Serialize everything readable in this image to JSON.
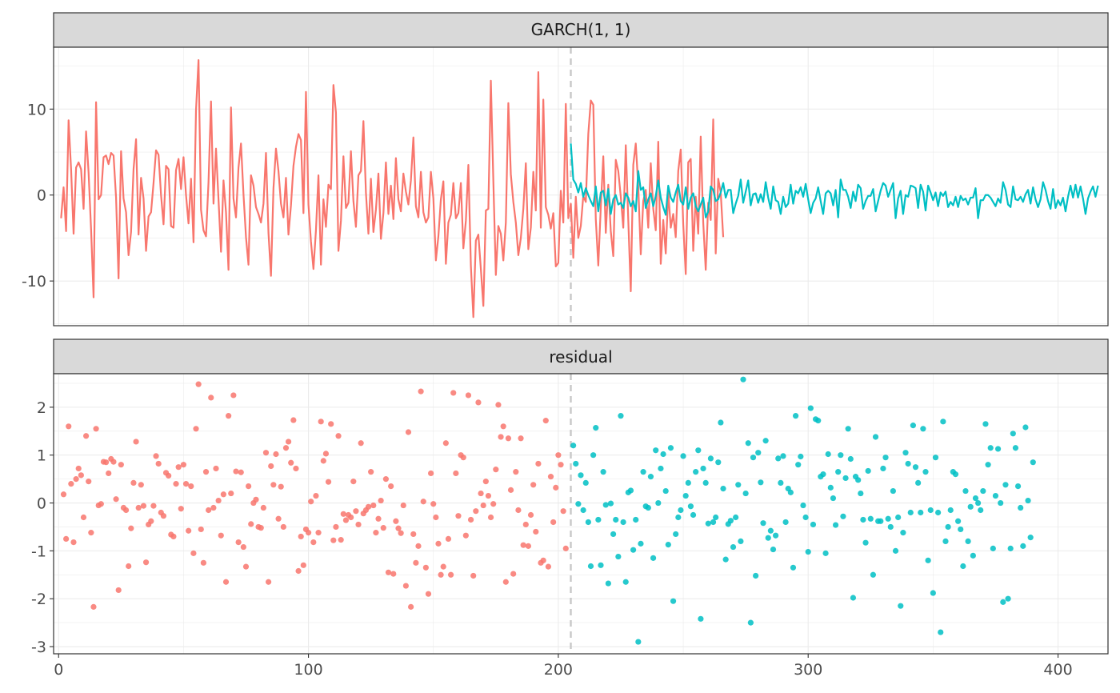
{
  "colors": {
    "train": "#F8766D",
    "test": "#00BFC4",
    "strip_bg": "#D9D9D9",
    "panel_border": "#333333",
    "grid": "#EBEBEB",
    "vline": "#C8C8C8"
  },
  "chart_data": [
    {
      "type": "line",
      "facet": "GARCH(1, 1)",
      "xlim": [
        -2,
        420
      ],
      "ylim": [
        -15.2,
        17.2
      ],
      "y_ticks": [
        {
          "value": -10,
          "label": "-10"
        },
        {
          "value": 0,
          "label": "0"
        },
        {
          "value": 10,
          "label": "10"
        }
      ],
      "vline": 205,
      "series": [
        {
          "color_key": "train",
          "x_start": 1,
          "values": [
            -2.7,
            0.9,
            -4.2,
            8.7,
            3.0,
            -4.5,
            3.2,
            3.8,
            3.0,
            -1.6,
            7.4,
            2.6,
            -4.0,
            -11.9,
            10.8,
            -0.5,
            0.0,
            4.4,
            4.6,
            3.6,
            4.9,
            4.6,
            -0.3,
            -9.7,
            5.1,
            -0.4,
            -2.0,
            -7.0,
            -4.3,
            3.0,
            6.5,
            -4.6,
            2.0,
            -0.4,
            -6.5,
            -2.5,
            -2.0,
            1.4,
            5.2,
            4.7,
            0.0,
            -3.4,
            3.4,
            3.0,
            -3.6,
            -3.8,
            2.9,
            4.2,
            0.7,
            4.4,
            0.0,
            -3.3,
            1.9,
            -5.5,
            9.9,
            15.7,
            -1.7,
            -4.1,
            -4.8,
            1.5,
            10.9,
            -1.0,
            5.4,
            -0.5,
            -6.6,
            1.7,
            -2.0,
            -8.7,
            10.2,
            -0.4,
            -2.6,
            3.2,
            6.0,
            0.1,
            -4.9,
            -8.1,
            2.3,
            1.1,
            -1.4,
            -2.2,
            -3.2,
            -1.0,
            4.9,
            -4.4,
            -9.4,
            0.8,
            5.4,
            2.8,
            -1.0,
            -2.6,
            2.0,
            -4.6,
            -1.2,
            3.4,
            5.6,
            7.1,
            6.4,
            -2.1,
            12.0,
            -1.1,
            -5.4,
            -8.6,
            -4.1,
            2.3,
            -8.1,
            -0.5,
            -3.7,
            1.2,
            0.7,
            12.8,
            9.6,
            -6.5,
            -3.0,
            4.5,
            -1.5,
            -0.9,
            5.1,
            -0.7,
            -3.7,
            2.3,
            2.8,
            8.6,
            0.3,
            -4.5,
            1.9,
            -4.3,
            -1.7,
            2.5,
            -5.1,
            -2.1,
            3.8,
            -2.2,
            1.1,
            -2.8,
            4.3,
            -0.5,
            -1.9,
            2.5,
            0.4,
            -1.1,
            1.7,
            6.7,
            -1.3,
            -2.6,
            2.7,
            -2.0,
            -3.2,
            -2.6,
            2.7,
            -0.4,
            -7.6,
            -4.8,
            -0.5,
            1.6,
            -8.0,
            -3.2,
            -2.3,
            1.4,
            -2.7,
            -2.1,
            1.4,
            -6.2,
            -3.0,
            3.5,
            -8.2,
            -14.2,
            -5.3,
            -4.6,
            -8.6,
            -12.9,
            -1.8,
            -1.6,
            13.3,
            1.6,
            -9.3,
            -3.6,
            -4.5,
            -7.6,
            -3.2,
            10.7,
            2.4,
            -0.8,
            -3.2,
            -7.0,
            -5.0,
            -1.6,
            3.7,
            -6.3,
            -3.8,
            2.7,
            -1.8,
            14.3,
            -3.8,
            11.1,
            -1.4,
            -2.3,
            -3.9,
            -2.1,
            -8.3,
            -7.9,
            0.5,
            -3.2,
            10.6,
            -2.7,
            -1.0,
            -7.3,
            -0.2,
            -5.0,
            -3.6,
            -0.1,
            -0.8,
            7.1,
            11.0,
            10.5,
            -2.8,
            -8.2,
            -1.4,
            4.5,
            -4.4,
            1.2,
            -4.2,
            -7.1,
            4.1,
            2.8,
            -0.2,
            -3.8,
            5.8,
            -2.9,
            -11.2,
            3.5,
            6.0,
            1.0,
            -6.9,
            -0.7,
            0.6,
            -3.8,
            3.7,
            -1.6,
            -4.1,
            6.2,
            -8.0,
            -2.9,
            -6.8,
            0.4,
            -3.8,
            -2.2,
            -4.9,
            2.8,
            5.3,
            -3.4,
            -9.2,
            3.8,
            4.2,
            -6.5,
            -0.2,
            -4.5,
            6.8,
            -3.2,
            -8.7,
            -0.9,
            -2.9,
            8.8,
            -6.8,
            1.9,
            0.3,
            -4.9
          ]
        },
        {
          "color_key": "test",
          "x_start": 205,
          "values": [
            6.0,
            1.8,
            1.3,
            0.3,
            1.4,
            -0.2,
            0.8,
            0.0,
            -0.7,
            -1.3,
            1.0,
            -1.9,
            0.3,
            0.5,
            -1.2,
            0.7,
            -2.2,
            -0.5,
            0.0,
            -1.1,
            -0.9,
            -1.5,
            0.2,
            -0.3,
            -1.3,
            -0.7,
            -1.9,
            2.8,
            0.6,
            0.9,
            -1.5,
            -0.5,
            0.2,
            -1.3,
            -0.1,
            1.7,
            -0.3,
            -1.4,
            -2.3,
            1.1,
            -0.3,
            -0.8,
            0.3,
            1.2,
            -0.7,
            -1.1,
            0.9,
            -1.6,
            -0.3,
            0.2,
            -1.3,
            -1.9,
            -1.1,
            -0.3,
            -2.6,
            -1.9,
            1.0,
            0.6,
            -0.7,
            -0.5,
            0.3,
            1.4,
            -0.3,
            0.6,
            0.6,
            -2.1,
            -1.0,
            -0.1,
            1.8,
            -0.9,
            0.4,
            1.7,
            -1.2,
            0.1,
            0.2,
            -0.9,
            0.1,
            -0.8,
            1.5,
            -0.3,
            -1.6,
            1.0,
            -0.6,
            -0.8,
            -2.2,
            -0.2,
            -1.4,
            -1.0,
            1.2,
            -1.0,
            0.5,
            0.2,
            0.9,
            -0.2,
            1.3,
            -0.5,
            -2.1,
            -0.9,
            -0.4,
            0.9,
            -0.7,
            -2.2,
            0.2,
            0.5,
            0.2,
            -1.2,
            0.6,
            -2.6,
            1.8,
            0.6,
            0.6,
            -0.2,
            -1.5,
            0.4,
            -0.7,
            1.2,
            0.8,
            -1.6,
            -0.7,
            -0.1,
            -0.1,
            0.7,
            -1.9,
            -0.7,
            0.5,
            1.4,
            1.1,
            -0.2,
            0.6,
            1.4,
            -2.7,
            -0.4,
            0.5,
            -2.2,
            0.0,
            -0.2,
            1.1,
            1.0,
            0.8,
            -1.5,
            1.2,
            0.4,
            -1.8,
            1.1,
            0.3,
            -0.6,
            0.3,
            -1.3,
            0.3,
            -0.1,
            0.4,
            -1.4,
            -0.8,
            -1.2,
            -0.2,
            -1.4,
            -0.1,
            -0.6,
            -0.4,
            -1.1,
            -0.3,
            -0.3,
            0.8,
            -2.7,
            -0.6,
            -0.6,
            0.0,
            0.0,
            -0.3,
            -0.8,
            -1.3,
            -0.4,
            -0.9,
            1.5,
            0.6,
            -1.1,
            -1.4,
            1.0,
            -0.5,
            -0.6,
            -0.2,
            -0.8,
            0.1,
            0.6,
            -1.0,
            0.9,
            -0.5,
            -1.4,
            -0.5,
            1.5,
            0.6,
            -0.7,
            -1.6,
            0.7,
            -1.5,
            -0.6,
            -1.2,
            -0.3,
            -1.9,
            -0.2,
            1.1,
            -0.3,
            1.2,
            -0.3,
            1.0,
            -0.4,
            -2.2,
            -0.4,
            0.4,
            1.0,
            -0.2,
            1.1
          ]
        }
      ]
    },
    {
      "type": "scatter",
      "facet": "residual",
      "xlim": [
        -2,
        420
      ],
      "ylim": [
        -3.15,
        2.7
      ],
      "x_ticks": [
        {
          "value": 0,
          "label": "0"
        },
        {
          "value": 100,
          "label": "100"
        },
        {
          "value": 200,
          "label": "200"
        },
        {
          "value": 300,
          "label": "300"
        },
        {
          "value": 400,
          "label": "400"
        }
      ],
      "y_ticks": [
        {
          "value": -3,
          "label": "-3"
        },
        {
          "value": -2,
          "label": "-2"
        },
        {
          "value": -1,
          "label": "-1"
        },
        {
          "value": 0,
          "label": "0"
        },
        {
          "value": 1,
          "label": "1"
        },
        {
          "value": 2,
          "label": "2"
        }
      ],
      "vline": 205,
      "series": [
        {
          "color_key": "train",
          "x_start": 2,
          "values": [
            0.18,
            -0.75,
            1.6,
            0.4,
            -0.82,
            0.5,
            0.72,
            0.58,
            -0.3,
            1.4,
            0.45,
            -0.62,
            -2.17,
            1.55,
            -0.05,
            -0.02,
            0.86,
            0.85,
            0.62,
            0.92,
            0.86,
            0.08,
            -1.82,
            0.8,
            -0.1,
            -0.15,
            -1.32,
            -0.53,
            0.42,
            1.28,
            -0.1,
            0.38,
            -0.06,
            -1.24,
            -0.45,
            -0.38,
            -0.06,
            0.98,
            0.82,
            -0.2,
            -0.27,
            0.63,
            0.57,
            -0.66,
            -0.7,
            0.4,
            0.75,
            -0.12,
            0.8,
            0.4,
            -0.58,
            0.35,
            -1.05,
            1.55,
            2.48,
            -0.55,
            -1.25,
            0.65,
            -0.15,
            2.2,
            -0.1,
            0.72,
            0.05,
            -0.68,
            0.18,
            -1.65,
            1.82,
            0.2,
            2.25,
            0.66,
            -0.82,
            0.64,
            -0.92,
            -1.33,
            0.35,
            -0.44,
            0.0,
            0.07,
            -0.5,
            -0.52,
            -0.1,
            1.05,
            -1.65,
            0.77,
            0.38,
            1.02,
            -0.33,
            0.34,
            -0.5,
            1.15,
            1.28,
            0.84,
            1.73,
            0.72,
            -1.42,
            -0.7,
            -1.3,
            -0.55,
            -0.62,
            0.03,
            -0.82,
            0.15,
            -0.62,
            1.7,
            0.88,
            1.03,
            0.44,
            1.65,
            -0.78,
            -0.5,
            1.4,
            -0.77,
            -0.23,
            -0.36,
            -0.25,
            -0.3,
            0.45,
            -0.17,
            -0.45,
            1.25,
            -0.22,
            -0.15,
            -0.08,
            0.65,
            -0.05,
            -0.62,
            -0.33,
            0.05,
            -0.52,
            0.5,
            -1.45,
            0.35,
            -1.48,
            -0.38,
            -0.53,
            -0.63,
            -0.05,
            -1.73,
            1.48,
            -2.17,
            -0.65,
            -1.25,
            -0.9,
            2.33,
            0.03,
            -1.35,
            -1.9,
            0.62,
            -0.02,
            -0.3,
            -0.85,
            -1.5,
            -1.33,
            1.25,
            -0.75,
            -1.5,
            2.3,
            0.62,
            -0.27,
            1.0,
            0.95,
            -0.68,
            2.25,
            -0.35,
            -1.52,
            -0.17,
            2.1,
            0.2,
            -0.05,
            0.45,
            0.15,
            -0.3,
            -0.02,
            0.7,
            2.05,
            1.38,
            1.6,
            -1.65,
            1.35,
            0.27,
            -1.48,
            0.65,
            -0.15,
            1.35,
            -0.88,
            -0.45,
            -0.9,
            -0.25,
            0.38,
            -0.6,
            0.82,
            -1.25,
            -1.2,
            1.72,
            -1.33,
            0.55,
            -0.4,
            0.32,
            1.0,
            0.8,
            -0.17,
            -0.95
          ]
        },
        {
          "color_key": "test",
          "x_start": 206,
          "values": [
            1.2,
            0.82,
            -0.02,
            0.58,
            -0.15,
            0.42,
            -0.4,
            -1.32,
            1.0,
            1.57,
            -0.35,
            -1.3,
            0.65,
            -0.04,
            -1.68,
            -0.01,
            -0.65,
            -0.35,
            -1.12,
            1.82,
            -0.4,
            -1.65,
            0.22,
            0.26,
            -0.98,
            -0.35,
            -2.9,
            -0.85,
            0.65,
            -0.07,
            -0.1,
            0.55,
            -1.15,
            1.1,
            0.0,
            0.72,
            1.02,
            0.25,
            -0.87,
            1.15,
            -2.05,
            -0.65,
            -0.3,
            -0.15,
            0.98,
            0.15,
            0.42,
            -0.07,
            -0.25,
            0.65,
            1.1,
            -2.42,
            0.72,
            0.42,
            -0.43,
            0.93,
            -0.4,
            -0.3,
            0.85,
            1.68,
            0.3,
            -1.18,
            -0.44,
            -0.37,
            -0.92,
            -0.3,
            0.38,
            -0.8,
            2.58,
            0.2,
            1.25,
            -2.5,
            0.95,
            -1.52,
            1.05,
            0.43,
            -0.42,
            1.3,
            -0.73,
            -0.58,
            -0.97,
            -0.68,
            0.93,
            0.42,
            0.98,
            -0.4,
            0.3,
            0.22,
            -1.35,
            1.82,
            0.8,
            0.97,
            -0.05,
            -0.3,
            -1.02,
            1.98,
            -0.45,
            1.75,
            1.72,
            0.55,
            0.6,
            -1.05,
            1.02,
            0.32,
            0.1,
            -0.46,
            0.65,
            1.0,
            -0.28,
            0.52,
            1.55,
            0.92,
            -1.98,
            0.55,
            0.48,
            0.2,
            -0.35,
            -0.83,
            0.67,
            -0.33,
            -1.5,
            1.38,
            -0.38,
            -0.38,
            0.72,
            0.95,
            -0.33,
            -0.5,
            0.25,
            -1.0,
            -0.3,
            -2.15,
            -0.62,
            1.05,
            0.82,
            -0.2,
            1.62,
            0.75,
            0.42,
            -0.2,
            1.55,
            0.65,
            -1.2,
            -0.15,
            -1.88,
            0.95,
            -0.2,
            -2.7,
            1.7,
            -0.8,
            -0.5,
            -0.15,
            0.65,
            0.6,
            -0.38,
            -0.55,
            -1.32,
            0.25,
            -0.8,
            -0.08,
            -1.1,
            0.1,
            0.0,
            -0.15,
            0.25,
            1.65,
            0.8,
            1.15,
            -0.95,
            0.15,
            1.13,
            0.0,
            -2.07,
            0.38,
            -2.0,
            -0.95,
            1.45,
            1.15,
            0.35,
            -0.1,
            -0.9,
            1.58,
            0.05,
            -0.72,
            0.85
          ]
        }
      ]
    }
  ]
}
